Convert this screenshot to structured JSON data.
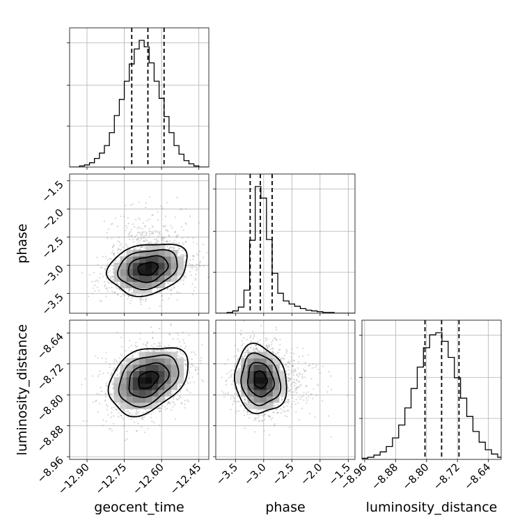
{
  "chart_data": {
    "type": "corner",
    "parameters": [
      "geocent_time",
      "phase",
      "luminosity_distance"
    ],
    "ticks": {
      "geocent_time": {
        "range": [
          -12.97,
          -12.41
        ],
        "values": [
          -12.9,
          -12.75,
          -12.6,
          -12.45
        ],
        "labels": [
          "−12.90",
          "−12.75",
          "−12.60",
          "−12.45"
        ]
      },
      "phase": {
        "range": [
          -3.85,
          -1.38
        ],
        "values": [
          -3.5,
          -3.0,
          -2.5,
          -2.0,
          -1.5
        ],
        "labels": [
          "−3.5",
          "−3.0",
          "−2.5",
          "−2.0",
          "−1.5"
        ]
      },
      "luminosity_distance": {
        "range": [
          -8.967,
          -8.607
        ],
        "values": [
          -8.96,
          -8.88,
          -8.8,
          -8.72,
          -8.64
        ],
        "labels": [
          "−8.96",
          "−8.88",
          "−8.80",
          "−8.72",
          "−8.64"
        ]
      }
    },
    "histograms": [
      {
        "param": "geocent_time",
        "x": [
          -12.96,
          -12.94,
          -12.92,
          -12.9,
          -12.88,
          -12.86,
          -12.84,
          -12.82,
          -12.8,
          -12.78,
          -12.76,
          -12.74,
          -12.72,
          -12.7,
          -12.68,
          -12.66,
          -12.64,
          -12.62,
          -12.6,
          -12.58,
          -12.56,
          -12.54,
          -12.52,
          -12.5,
          -12.48,
          -12.46,
          -12.44,
          -12.42
        ],
        "counts": [
          0,
          0,
          1,
          2,
          4,
          8,
          13,
          20,
          32,
          48,
          63,
          80,
          96,
          110,
          118,
          112,
          97,
          80,
          64,
          47,
          32,
          20,
          12,
          6,
          3,
          1,
          0,
          0
        ],
        "quantiles": [
          -12.72,
          -12.655,
          -12.59
        ]
      },
      {
        "param": "phase",
        "x": [
          -3.8,
          -3.7,
          -3.6,
          -3.5,
          -3.4,
          -3.3,
          -3.2,
          -3.1,
          -3.0,
          -2.9,
          -2.8,
          -2.7,
          -2.6,
          -2.5,
          -2.4,
          -2.3,
          -2.2,
          -2.1,
          -2.0,
          -1.9,
          -1.8,
          -1.7,
          -1.6,
          -1.5,
          -1.4
        ],
        "counts": [
          0,
          0,
          1,
          3,
          8,
          30,
          95,
          165,
          150,
          96,
          52,
          26,
          16,
          12,
          9,
          6,
          4,
          3,
          2,
          1,
          1,
          0,
          0,
          0,
          0
        ],
        "quantiles": [
          -3.24,
          -3.06,
          -2.85
        ]
      },
      {
        "param": "luminosity_distance",
        "x": [
          -8.96,
          -8.944,
          -8.928,
          -8.912,
          -8.896,
          -8.88,
          -8.864,
          -8.848,
          -8.832,
          -8.816,
          -8.8,
          -8.784,
          -8.768,
          -8.752,
          -8.736,
          -8.72,
          -8.704,
          -8.688,
          -8.672,
          -8.656,
          -8.64,
          -8.624,
          -8.608
        ],
        "counts": [
          1,
          2,
          4,
          7,
          12,
          20,
          32,
          48,
          66,
          86,
          104,
          116,
          118,
          110,
          95,
          76,
          57,
          40,
          26,
          16,
          9,
          5,
          2
        ],
        "quantiles": [
          -8.804,
          -8.761,
          -8.716
        ]
      }
    ],
    "joint": [
      {
        "x": "geocent_time",
        "y": "phase",
        "mean": [
          -12.655,
          -3.06
        ],
        "std": [
          0.08,
          0.23
        ],
        "corr": 0.22
      },
      {
        "x": "geocent_time",
        "y": "luminosity_distance",
        "mean": [
          -12.655,
          -8.761
        ],
        "std": [
          0.08,
          0.044
        ],
        "corr": 0.34
      },
      {
        "x": "phase",
        "y": "luminosity_distance",
        "mean": [
          -3.06,
          -8.761
        ],
        "std": [
          0.23,
          0.044
        ],
        "corr": -0.12
      }
    ],
    "quantile_levels": [
      0.16,
      0.5,
      0.84
    ],
    "grid": true
  }
}
